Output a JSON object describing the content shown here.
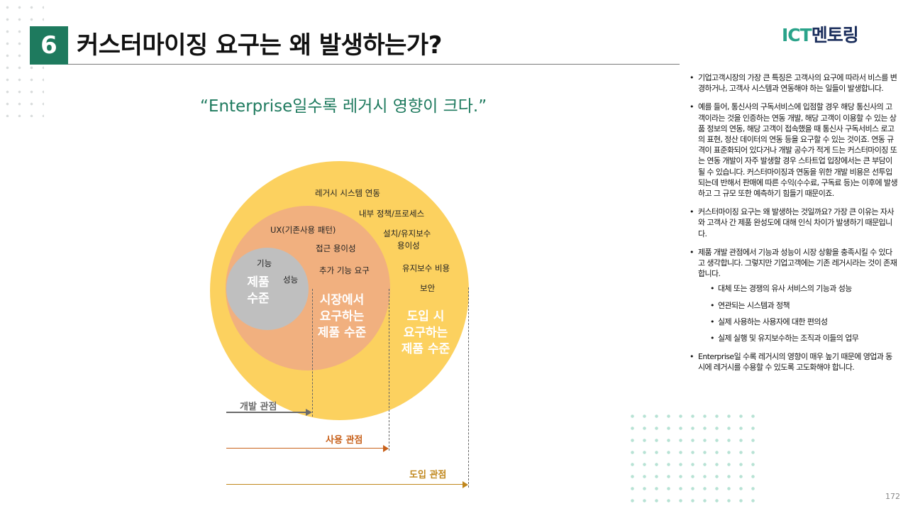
{
  "header": {
    "number": "6",
    "title": "커스터마이징 요구는 왜 발생하는가?",
    "brand_prefix": "ICT",
    "brand_suffix": "멘토링"
  },
  "quote": "“Enterprise일수록 레거시 영향이 크다.”",
  "diagram": {
    "outer": {
      "labels": [
        "레거시 시스템 연동",
        "내부 정책/프로세스",
        "설치/유지보수",
        "용이성",
        "유지보수 비용",
        "보안"
      ],
      "title_lines": [
        "도입 시",
        "요구하는",
        "제품 수준"
      ]
    },
    "middle": {
      "labels": [
        "UX(기존사용 패턴)",
        "접근 용이성",
        "추가 기능 요구"
      ],
      "title_lines": [
        "시장에서",
        "요구하는",
        "제품 수준"
      ]
    },
    "inner": {
      "labels": [
        "기능",
        "성능"
      ],
      "title_lines": [
        "제품",
        "수준"
      ]
    },
    "perspectives": [
      {
        "label": "개발 관점",
        "color": "#6b6b6b"
      },
      {
        "label": "사용 관점",
        "color": "#c8611b"
      },
      {
        "label": "도입 관점",
        "color": "#c0871c"
      }
    ]
  },
  "bullets": [
    {
      "text": "기업고객시장의 가장 큰 특징은 고객사의 요구에 따라서 비스를 변경하거나, 고객사 시스템과 연동해야 하는 일들이 발생합니다."
    },
    {
      "text": "예를 들어, 통신사의 구독서비스에 입점할 경우 해당 통신사의 고객이라는 것을 인증하는 연동 개발, 해당 고객이 이용할 수 있는 상품 정보의 연동, 해당 고객이 접속했을 때 통신사 구독서비스 로고의 표현, 정산 데이터의 연동 등을 요구할 수 있는 것이죠. 연동 규격이 표준화되어 있다거나 개발 공수가 적게 드는 커스터마이징 또는 연동 개발이 자주 발생할 경우 스타트업 입장에서는 큰 부담이 될 수 있습니다. 커스터마이징과 연동을 위한 개발 비용은 선투입 되는데 반해서 판매에 따른 수익(수수료, 구독료 등)는 이후에 발생하고 그 규모 또한 예측하기 힘들기 때문이죠."
    },
    {
      "text": "커스터마이징 요구는 왜 발생하는 것일까요? 가장 큰 이유는 자사와 고객사 간 제품 완성도에 대해 인식 차이가 발생하기 때문입니다."
    },
    {
      "text": "제품 개발 관점에서 기능과 성능이 시장 상황을 충족시킬 수 있다고 생각합니다. 그렇지만 기업고객에는 기존 레거시라는 것이 존재합니다.",
      "sub": [
        "대체 또는 경쟁의 유사 서비스의 기능과 성능",
        "연관되는 시스템과 정책",
        "실제 사용하는 사용자에 대한 편의성",
        "실제 실행 및 유지보수하는 조직과 이들의 업무"
      ]
    },
    {
      "text": "Enterprise일 수록 레거시의 영향이 매우 높기 때문에 영업과 동시에 레거시를 수용할 수 있도록 고도화해야 합니다."
    }
  ],
  "page_number": "172"
}
